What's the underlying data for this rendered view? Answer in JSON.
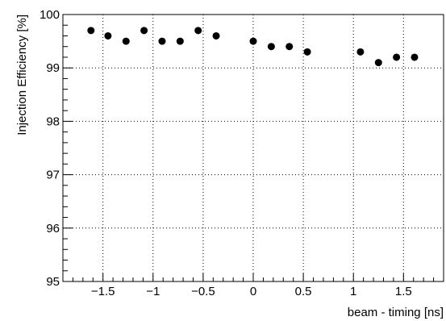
{
  "chart_data": {
    "type": "scatter",
    "xlabel": "beam - timing [ns]",
    "ylabel": "Injection Efficiency [%]",
    "xlim": [
      -1.9,
      1.9
    ],
    "ylim": [
      95,
      100
    ],
    "grid": true,
    "x_ticks": [
      -1.5,
      -1,
      -0.5,
      0,
      0.5,
      1,
      1.5
    ],
    "x_tick_labels": [
      "−1.5",
      "−1",
      "−0.5",
      "0",
      "0.5",
      "1",
      "1.5"
    ],
    "y_ticks": [
      95,
      96,
      97,
      98,
      99,
      100
    ],
    "y_tick_labels": [
      "95",
      "96",
      "97",
      "98",
      "99",
      "100"
    ],
    "marker_color": "#000000",
    "points": [
      {
        "x": -1.62,
        "y": 99.7
      },
      {
        "x": -1.45,
        "y": 99.6
      },
      {
        "x": -1.27,
        "y": 99.5
      },
      {
        "x": -1.09,
        "y": 99.7
      },
      {
        "x": -0.91,
        "y": 99.5
      },
      {
        "x": -0.73,
        "y": 99.5
      },
      {
        "x": -0.55,
        "y": 99.7
      },
      {
        "x": -0.37,
        "y": 99.6
      },
      {
        "x": 0.0,
        "y": 99.5
      },
      {
        "x": 0.18,
        "y": 99.4
      },
      {
        "x": 0.36,
        "y": 99.4
      },
      {
        "x": 0.54,
        "y": 99.3
      },
      {
        "x": 1.07,
        "y": 99.3
      },
      {
        "x": 1.25,
        "y": 99.1
      },
      {
        "x": 1.43,
        "y": 99.2
      },
      {
        "x": 1.61,
        "y": 99.2
      }
    ]
  }
}
